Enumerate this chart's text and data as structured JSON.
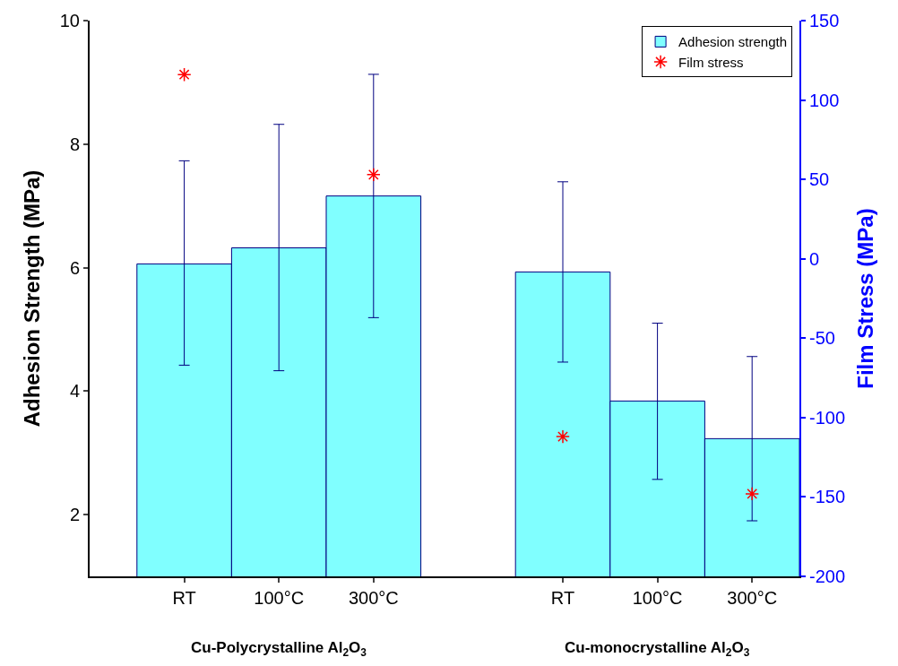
{
  "chart_data": {
    "type": "bar",
    "categories": [
      "RT",
      "100°C",
      "300°C",
      null,
      "RT",
      "100°C",
      "300°C"
    ],
    "series": [
      {
        "name": "Adhesion strength",
        "color": "#80ffff",
        "values": [
          6.06,
          6.32,
          7.16,
          null,
          5.93,
          3.84,
          3.23
        ],
        "errors": [
          [
            4.42,
            7.73
          ],
          [
            4.33,
            8.32
          ],
          [
            5.19,
            9.13
          ],
          null,
          [
            4.47,
            7.39
          ],
          [
            2.57,
            5.1
          ],
          [
            1.9,
            4.56
          ]
        ]
      },
      {
        "name": "Film stress",
        "type": "scatter",
        "axis": "y2",
        "color": "#ff0000",
        "marker": "cross",
        "values": [
          116,
          null,
          53,
          null,
          -112,
          null,
          -148
        ]
      }
    ],
    "ylabel": "Adhesion Strength (MPa)",
    "y2label": "Film Stress (MPa)",
    "ylim": [
      1,
      10
    ],
    "yticks": [
      2,
      4,
      6,
      8,
      10
    ],
    "y2lim": [
      -200,
      150
    ],
    "y2ticks": [
      -200,
      -150,
      -100,
      -50,
      0,
      50,
      100,
      150
    ],
    "annotations": [
      "Cu-Polycrystalline Al$_{2}$O$_{3}$",
      "Cu-monocrystalline Al$_{2}$O$_{3}$"
    ],
    "legend": "top right"
  }
}
